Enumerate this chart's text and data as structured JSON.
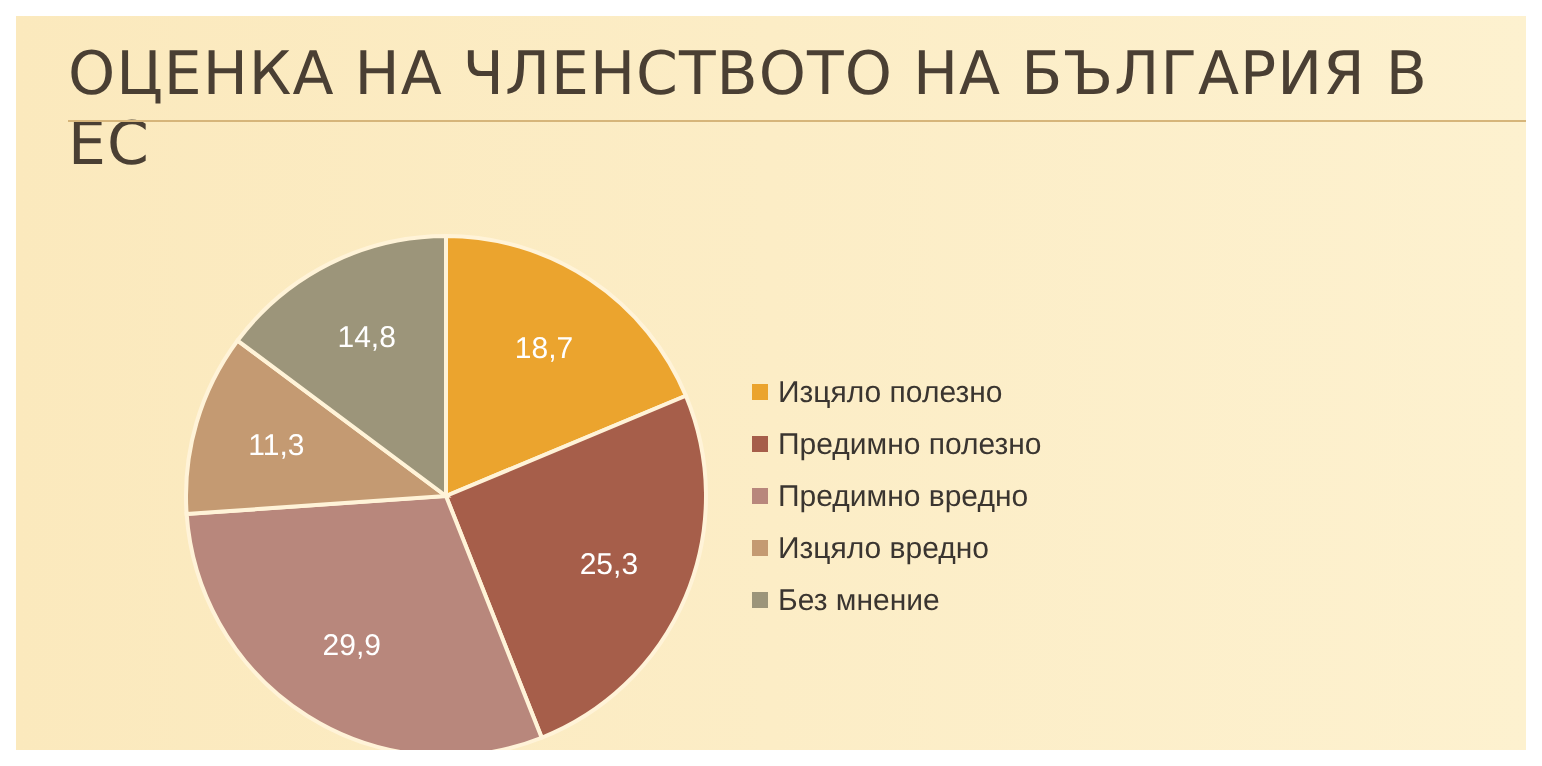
{
  "chart_data": {
    "type": "pie",
    "title": "ОЦЕНКА НА ЧЛЕНСТВОТО НА БЪЛГАРИЯ В ЕС",
    "categories": [
      "Изцяло полезно",
      "Предимно полезно",
      "Предимно вредно",
      "Изцяло вредно",
      "Без мнение"
    ],
    "values": [
      18.7,
      25.3,
      29.9,
      11.3,
      14.8
    ],
    "value_labels": [
      "18,7",
      "25,3",
      "29,9",
      "11,3",
      "14,8"
    ],
    "colors": [
      "#eba42e",
      "#a65e4a",
      "#b8877c",
      "#c49a72",
      "#9c957a"
    ],
    "legend": "right"
  }
}
